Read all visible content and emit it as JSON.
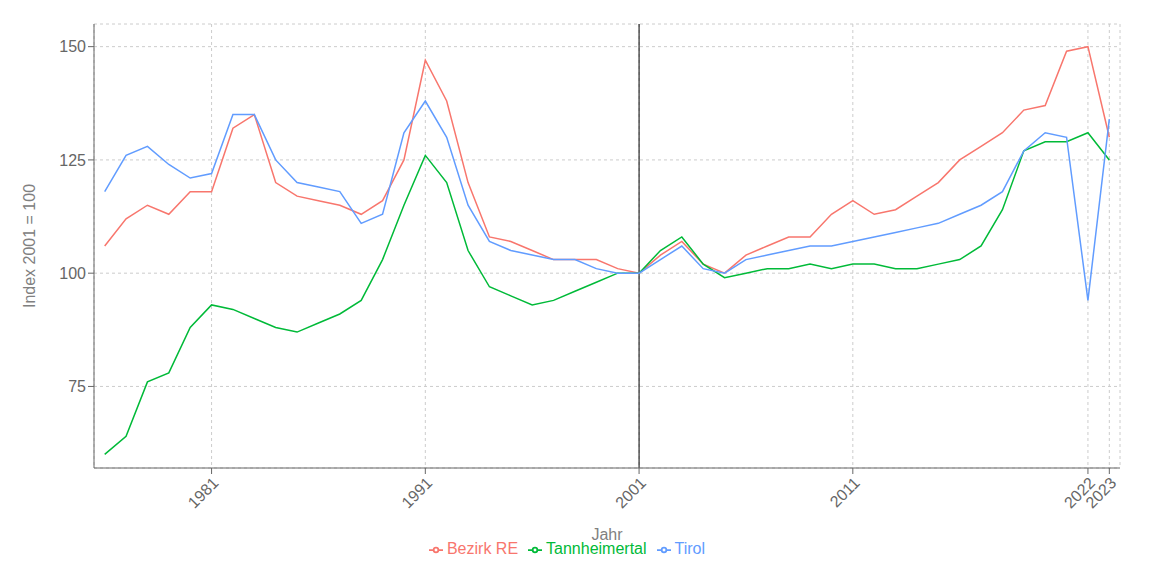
{
  "chart_data": {
    "type": "line",
    "xlabel": "Jahr",
    "ylabel": "Index 2001 = 100",
    "x": [
      1976,
      1977,
      1978,
      1979,
      1980,
      1981,
      1982,
      1983,
      1984,
      1985,
      1986,
      1987,
      1988,
      1989,
      1990,
      1991,
      1992,
      1993,
      1994,
      1995,
      1996,
      1997,
      1998,
      1999,
      2000,
      2001,
      2002,
      2003,
      2004,
      2005,
      2006,
      2007,
      2008,
      2009,
      2010,
      2011,
      2012,
      2013,
      2014,
      2015,
      2016,
      2017,
      2018,
      2019,
      2020,
      2021,
      2022,
      2023
    ],
    "series": [
      {
        "name": "Bezirk RE",
        "color": "#F8766D",
        "values": [
          106,
          112,
          115,
          113,
          118,
          118,
          132,
          135,
          120,
          117,
          116,
          115,
          113,
          116,
          125,
          147,
          138,
          120,
          108,
          107,
          105,
          103,
          103,
          103,
          101,
          100,
          104,
          107,
          102,
          100,
          104,
          106,
          108,
          108,
          113,
          116,
          113,
          114,
          117,
          120,
          125,
          128,
          131,
          136,
          137,
          149,
          150,
          130
        ]
      },
      {
        "name": "Tannheimertal",
        "color": "#00BA38",
        "values": [
          60,
          64,
          76,
          78,
          88,
          93,
          92,
          90,
          88,
          87,
          89,
          91,
          94,
          103,
          115,
          126,
          120,
          105,
          97,
          95,
          93,
          94,
          96,
          98,
          100,
          100,
          105,
          108,
          102,
          99,
          100,
          101,
          101,
          102,
          101,
          102,
          102,
          101,
          101,
          102,
          103,
          106,
          114,
          127,
          129,
          129,
          131,
          125
        ]
      },
      {
        "name": "Tirol",
        "color": "#619CFF",
        "values": [
          118,
          126,
          128,
          124,
          121,
          122,
          135,
          135,
          125,
          120,
          119,
          118,
          111,
          113,
          131,
          138,
          130,
          115,
          107,
          105,
          104,
          103,
          103,
          101,
          100,
          100,
          103,
          106,
          101,
          100,
          103,
          104,
          105,
          106,
          106,
          107,
          108,
          109,
          110,
          111,
          113,
          115,
          118,
          127,
          131,
          130,
          94,
          134
        ]
      }
    ],
    "xlim": [
      1975.5,
      2023.5
    ],
    "xticks": [
      1981,
      1991,
      2001,
      2011,
      2022,
      2023
    ],
    "ylim": [
      57,
      155
    ],
    "yticks": [
      75,
      100,
      125,
      150
    ],
    "grid": true,
    "legend": "bottom",
    "vline": 2001
  }
}
